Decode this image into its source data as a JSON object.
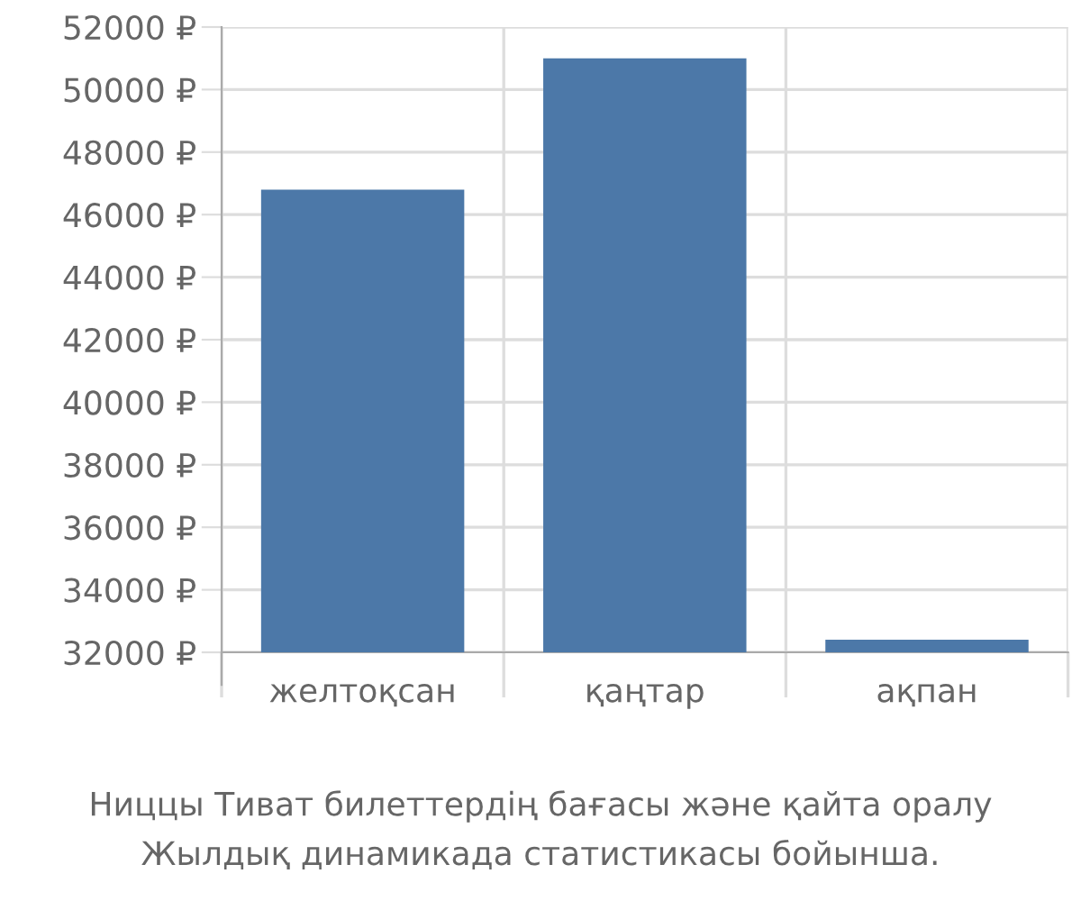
{
  "chart_data": {
    "type": "bar",
    "title": "Ниццы Тиват билеттердің бағасы және қайта оралу",
    "subtitle": "Жылдық динамикада статистикасы бойынша.",
    "categories": [
      "желтоқсан",
      "қаңтар",
      "ақпан"
    ],
    "values": [
      46800,
      51000,
      32400
    ],
    "color": "#4c78a8",
    "ylim": [
      32000,
      52000
    ],
    "yticks": [
      {
        "value": 32000,
        "label": "32000 ₽"
      },
      {
        "value": 34000,
        "label": "34000 ₽"
      },
      {
        "value": 36000,
        "label": "36000 ₽"
      },
      {
        "value": 38000,
        "label": "38000 ₽"
      },
      {
        "value": 40000,
        "label": "40000 ₽"
      },
      {
        "value": 42000,
        "label": "42000 ₽"
      },
      {
        "value": 44000,
        "label": "44000 ₽"
      },
      {
        "value": 46000,
        "label": "46000 ₽"
      },
      {
        "value": 48000,
        "label": "48000 ₽"
      },
      {
        "value": 50000,
        "label": "50000 ₽"
      },
      {
        "value": 52000,
        "label": "52000 ₽"
      }
    ],
    "grid": true
  }
}
